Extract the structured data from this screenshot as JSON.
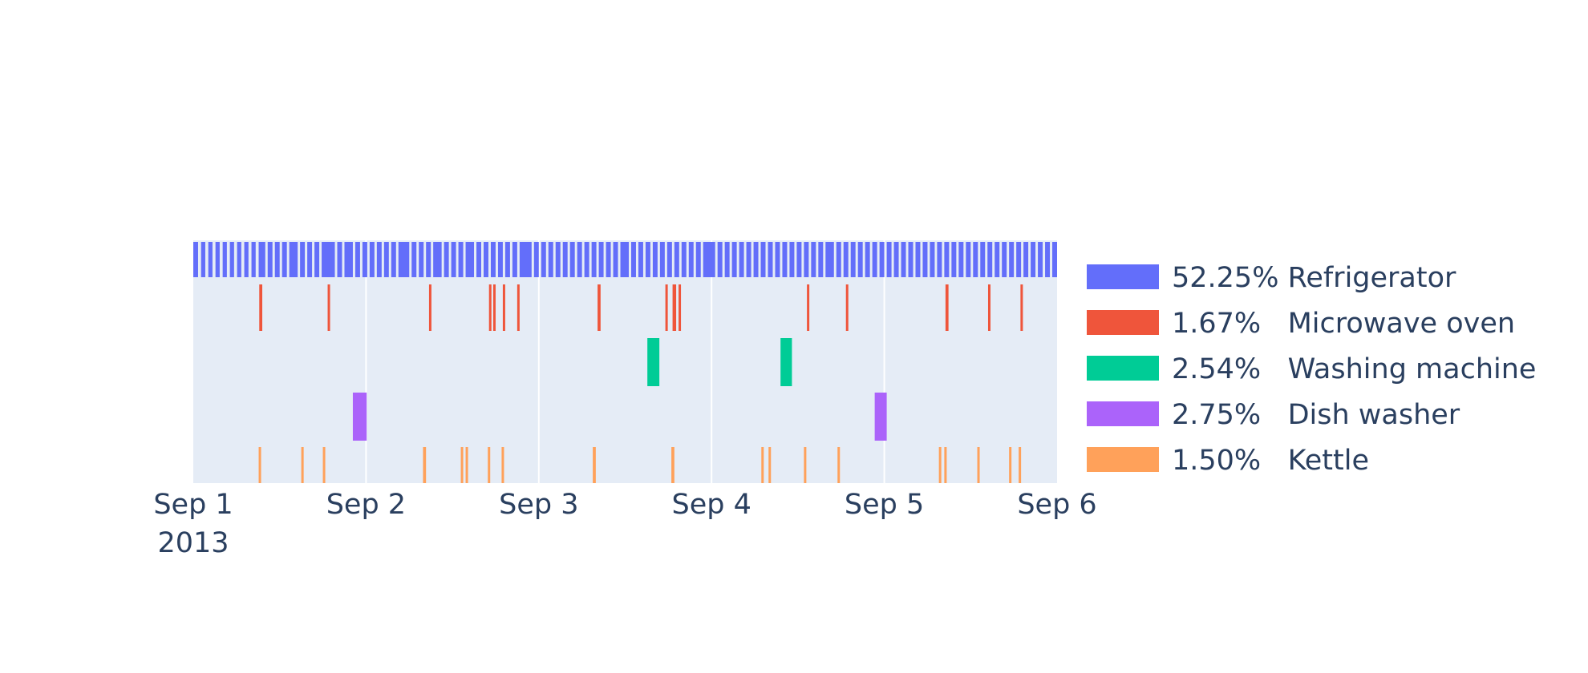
{
  "chart_data": {
    "type": "timeline",
    "x_range": [
      "2013-09-01",
      "2013-09-06"
    ],
    "x_tick_labels": [
      "Sep 1",
      "Sep 2",
      "Sep 3",
      "Sep 4",
      "Sep 5",
      "Sep 6"
    ],
    "x_year_label": "2013",
    "grid": true,
    "legend_position": "right",
    "series": [
      {
        "name": "52.25% Refrigerator",
        "color": "#636efa",
        "intervals": [
          [
            "2013-09-01 00:00",
            "2013-09-01 00:40"
          ],
          [
            "2013-09-01 01:05",
            "2013-09-01 01:40"
          ],
          [
            "2013-09-01 02:05",
            "2013-09-01 02:40"
          ],
          [
            "2013-09-01 03:05",
            "2013-09-01 03:40"
          ],
          [
            "2013-09-01 04:05",
            "2013-09-01 04:40"
          ],
          [
            "2013-09-01 05:05",
            "2013-09-01 05:40"
          ],
          [
            "2013-09-01 06:05",
            "2013-09-01 06:40"
          ],
          [
            "2013-09-01 07:05",
            "2013-09-01 07:40"
          ],
          [
            "2013-09-01 08:05",
            "2013-09-01 08:40"
          ],
          [
            "2013-09-01 09:05",
            "2013-09-01 10:00"
          ],
          [
            "2013-09-01 10:20",
            "2013-09-01 11:00"
          ],
          [
            "2013-09-01 11:20",
            "2013-09-01 12:00"
          ],
          [
            "2013-09-01 12:20",
            "2013-09-01 13:00"
          ],
          [
            "2013-09-01 13:20",
            "2013-09-01 14:30"
          ],
          [
            "2013-09-01 14:50",
            "2013-09-01 15:30"
          ],
          [
            "2013-09-01 15:50",
            "2013-09-01 16:30"
          ],
          [
            "2013-09-01 16:50",
            "2013-09-01 17:30"
          ],
          [
            "2013-09-01 17:50",
            "2013-09-01 19:40"
          ],
          [
            "2013-09-01 20:00",
            "2013-09-01 20:40"
          ],
          [
            "2013-09-01 21:00",
            "2013-09-01 22:10"
          ],
          [
            "2013-09-01 22:30",
            "2013-09-01 23:10"
          ],
          [
            "2013-09-01 23:30",
            "2013-09-02 00:10"
          ],
          [
            "2013-09-02 00:30",
            "2013-09-02 01:10"
          ],
          [
            "2013-09-02 01:30",
            "2013-09-02 02:10"
          ],
          [
            "2013-09-02 02:30",
            "2013-09-02 03:10"
          ],
          [
            "2013-09-02 03:30",
            "2013-09-02 04:10"
          ],
          [
            "2013-09-02 04:30",
            "2013-09-02 06:00"
          ],
          [
            "2013-09-02 06:20",
            "2013-09-02 07:00"
          ],
          [
            "2013-09-02 07:20",
            "2013-09-02 08:00"
          ],
          [
            "2013-09-02 08:20",
            "2013-09-02 09:00"
          ],
          [
            "2013-09-02 09:20",
            "2013-09-02 10:30"
          ],
          [
            "2013-09-02 10:50",
            "2013-09-02 11:30"
          ],
          [
            "2013-09-02 11:50",
            "2013-09-02 12:30"
          ],
          [
            "2013-09-02 12:50",
            "2013-09-02 13:30"
          ],
          [
            "2013-09-02 13:50",
            "2013-09-02 15:00"
          ],
          [
            "2013-09-02 15:20",
            "2013-09-02 16:00"
          ],
          [
            "2013-09-02 16:20",
            "2013-09-02 17:00"
          ],
          [
            "2013-09-02 17:20",
            "2013-09-02 18:00"
          ],
          [
            "2013-09-02 18:20",
            "2013-09-02 19:00"
          ],
          [
            "2013-09-02 19:20",
            "2013-09-02 20:00"
          ],
          [
            "2013-09-02 20:20",
            "2013-09-02 21:00"
          ],
          [
            "2013-09-02 21:20",
            "2013-09-02 23:00"
          ],
          [
            "2013-09-02 23:20",
            "2013-09-03 00:00"
          ],
          [
            "2013-09-03 00:20",
            "2013-09-03 01:00"
          ],
          [
            "2013-09-03 01:20",
            "2013-09-03 02:00"
          ],
          [
            "2013-09-03 02:20",
            "2013-09-03 03:00"
          ],
          [
            "2013-09-03 03:20",
            "2013-09-03 04:00"
          ],
          [
            "2013-09-03 04:20",
            "2013-09-03 05:00"
          ],
          [
            "2013-09-03 05:20",
            "2013-09-03 06:00"
          ],
          [
            "2013-09-03 06:20",
            "2013-09-03 07:00"
          ],
          [
            "2013-09-03 07:20",
            "2013-09-03 08:00"
          ],
          [
            "2013-09-03 08:20",
            "2013-09-03 09:00"
          ],
          [
            "2013-09-03 09:20",
            "2013-09-03 10:00"
          ],
          [
            "2013-09-03 10:20",
            "2013-09-03 11:00"
          ],
          [
            "2013-09-03 11:20",
            "2013-09-03 12:30"
          ],
          [
            "2013-09-03 12:50",
            "2013-09-03 13:30"
          ],
          [
            "2013-09-03 13:50",
            "2013-09-03 14:30"
          ],
          [
            "2013-09-03 14:50",
            "2013-09-03 15:30"
          ],
          [
            "2013-09-03 15:50",
            "2013-09-03 16:30"
          ],
          [
            "2013-09-03 16:50",
            "2013-09-03 17:30"
          ],
          [
            "2013-09-03 17:50",
            "2013-09-03 18:30"
          ],
          [
            "2013-09-03 18:50",
            "2013-09-03 19:30"
          ],
          [
            "2013-09-03 19:50",
            "2013-09-03 20:30"
          ],
          [
            "2013-09-03 20:50",
            "2013-09-03 21:30"
          ],
          [
            "2013-09-03 21:50",
            "2013-09-03 22:30"
          ],
          [
            "2013-09-03 22:50",
            "2013-09-04 00:30"
          ],
          [
            "2013-09-04 00:50",
            "2013-09-04 01:30"
          ],
          [
            "2013-09-04 01:50",
            "2013-09-04 02:30"
          ],
          [
            "2013-09-04 02:50",
            "2013-09-04 03:30"
          ],
          [
            "2013-09-04 03:50",
            "2013-09-04 04:30"
          ],
          [
            "2013-09-04 04:50",
            "2013-09-04 05:30"
          ],
          [
            "2013-09-04 05:50",
            "2013-09-04 06:30"
          ],
          [
            "2013-09-04 06:50",
            "2013-09-04 07:30"
          ],
          [
            "2013-09-04 07:50",
            "2013-09-04 08:30"
          ],
          [
            "2013-09-04 08:50",
            "2013-09-04 09:30"
          ],
          [
            "2013-09-04 09:50",
            "2013-09-04 10:30"
          ],
          [
            "2013-09-04 10:50",
            "2013-09-04 11:30"
          ],
          [
            "2013-09-04 11:50",
            "2013-09-04 12:30"
          ],
          [
            "2013-09-04 12:50",
            "2013-09-04 13:30"
          ],
          [
            "2013-09-04 13:50",
            "2013-09-04 14:30"
          ],
          [
            "2013-09-04 14:50",
            "2013-09-04 15:30"
          ],
          [
            "2013-09-04 15:50",
            "2013-09-04 17:00"
          ],
          [
            "2013-09-04 17:20",
            "2013-09-04 18:00"
          ],
          [
            "2013-09-04 18:20",
            "2013-09-04 19:00"
          ],
          [
            "2013-09-04 19:20",
            "2013-09-04 20:00"
          ],
          [
            "2013-09-04 20:20",
            "2013-09-04 21:00"
          ],
          [
            "2013-09-04 21:20",
            "2013-09-04 22:00"
          ],
          [
            "2013-09-04 22:20",
            "2013-09-04 23:00"
          ],
          [
            "2013-09-04 23:20",
            "2013-09-05 00:00"
          ],
          [
            "2013-09-05 00:20",
            "2013-09-05 01:00"
          ],
          [
            "2013-09-05 01:20",
            "2013-09-05 02:00"
          ],
          [
            "2013-09-05 02:20",
            "2013-09-05 03:00"
          ],
          [
            "2013-09-05 03:20",
            "2013-09-05 04:00"
          ],
          [
            "2013-09-05 04:20",
            "2013-09-05 05:00"
          ],
          [
            "2013-09-05 05:20",
            "2013-09-05 06:00"
          ],
          [
            "2013-09-05 06:20",
            "2013-09-05 07:00"
          ],
          [
            "2013-09-05 07:20",
            "2013-09-05 08:00"
          ],
          [
            "2013-09-05 08:20",
            "2013-09-05 09:00"
          ],
          [
            "2013-09-05 09:20",
            "2013-09-05 10:00"
          ],
          [
            "2013-09-05 10:20",
            "2013-09-05 11:00"
          ],
          [
            "2013-09-05 11:20",
            "2013-09-05 12:00"
          ],
          [
            "2013-09-05 12:20",
            "2013-09-05 13:00"
          ],
          [
            "2013-09-05 13:20",
            "2013-09-05 14:00"
          ],
          [
            "2013-09-05 14:20",
            "2013-09-05 15:00"
          ],
          [
            "2013-09-05 15:20",
            "2013-09-05 16:00"
          ],
          [
            "2013-09-05 16:20",
            "2013-09-05 17:00"
          ],
          [
            "2013-09-05 17:20",
            "2013-09-05 18:00"
          ],
          [
            "2013-09-05 18:20",
            "2013-09-05 19:00"
          ],
          [
            "2013-09-05 19:20",
            "2013-09-05 20:00"
          ],
          [
            "2013-09-05 20:20",
            "2013-09-05 21:00"
          ],
          [
            "2013-09-05 21:20",
            "2013-09-05 22:00"
          ],
          [
            "2013-09-05 22:20",
            "2013-09-05 23:00"
          ],
          [
            "2013-09-05 23:20",
            "2013-09-06 00:00"
          ]
        ]
      },
      {
        "name": "1.67%   Microwave oven",
        "color": "#ef553b",
        "intervals": [
          [
            "2013-09-01 09:10",
            "2013-09-01 09:35"
          ],
          [
            "2013-09-01 18:40",
            "2013-09-01 18:55"
          ],
          [
            "2013-09-02 08:45",
            "2013-09-02 09:00"
          ],
          [
            "2013-09-02 17:05",
            "2013-09-02 17:20"
          ],
          [
            "2013-09-02 17:40",
            "2013-09-02 17:55"
          ],
          [
            "2013-09-02 19:00",
            "2013-09-02 19:15"
          ],
          [
            "2013-09-02 21:00",
            "2013-09-02 21:15"
          ],
          [
            "2013-09-03 08:10",
            "2013-09-03 08:35"
          ],
          [
            "2013-09-03 17:35",
            "2013-09-03 17:50"
          ],
          [
            "2013-09-03 18:35",
            "2013-09-03 19:05"
          ],
          [
            "2013-09-03 19:25",
            "2013-09-03 19:40"
          ],
          [
            "2013-09-04 13:15",
            "2013-09-04 13:30"
          ],
          [
            "2013-09-04 18:40",
            "2013-09-04 18:55"
          ],
          [
            "2013-09-05 08:30",
            "2013-09-05 08:55"
          ],
          [
            "2013-09-05 14:25",
            "2013-09-05 14:40"
          ],
          [
            "2013-09-05 18:55",
            "2013-09-05 19:10"
          ]
        ]
      },
      {
        "name": "2.54%   Washing machine",
        "color": "#00cc96",
        "intervals": [
          [
            "2013-09-03 15:05",
            "2013-09-03 16:45"
          ],
          [
            "2013-09-04 09:35",
            "2013-09-04 11:10"
          ]
        ]
      },
      {
        "name": "2.75%   Dish washer",
        "color": "#ab63fa",
        "intervals": [
          [
            "2013-09-01 22:10",
            "2013-09-02 00:05"
          ],
          [
            "2013-09-04 22:40",
            "2013-09-05 00:20"
          ]
        ]
      },
      {
        "name": "1.50%   Kettle",
        "color": "#ffa15a",
        "intervals": [
          [
            "2013-09-01 09:05",
            "2013-09-01 09:20"
          ],
          [
            "2013-09-01 15:00",
            "2013-09-01 15:15"
          ],
          [
            "2013-09-01 18:00",
            "2013-09-01 18:15"
          ],
          [
            "2013-09-02 07:55",
            "2013-09-02 08:20"
          ],
          [
            "2013-09-02 13:10",
            "2013-09-02 13:25"
          ],
          [
            "2013-09-02 13:50",
            "2013-09-02 14:05"
          ],
          [
            "2013-09-02 16:55",
            "2013-09-02 17:10"
          ],
          [
            "2013-09-02 18:50",
            "2013-09-02 19:05"
          ],
          [
            "2013-09-03 07:30",
            "2013-09-03 07:55"
          ],
          [
            "2013-09-03 18:25",
            "2013-09-03 18:50"
          ],
          [
            "2013-09-04 06:55",
            "2013-09-04 07:10"
          ],
          [
            "2013-09-04 07:55",
            "2013-09-04 08:10"
          ],
          [
            "2013-09-04 12:50",
            "2013-09-04 13:05"
          ],
          [
            "2013-09-04 17:30",
            "2013-09-04 17:45"
          ],
          [
            "2013-09-05 07:35",
            "2013-09-05 07:50"
          ],
          [
            "2013-09-05 08:20",
            "2013-09-05 08:35"
          ],
          [
            "2013-09-05 12:55",
            "2013-09-05 13:10"
          ],
          [
            "2013-09-05 17:20",
            "2013-09-05 17:35"
          ],
          [
            "2013-09-05 18:40",
            "2013-09-05 18:55"
          ]
        ]
      }
    ]
  }
}
